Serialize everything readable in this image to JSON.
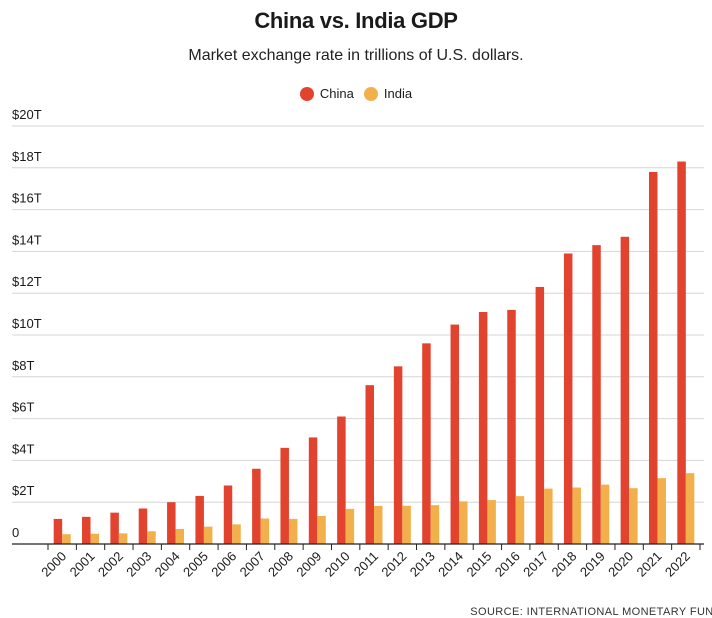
{
  "chart_data": {
    "type": "bar",
    "title": "China vs. India GDP",
    "subtitle": "Market exchange rate in trillions of U.S. dollars.",
    "categories": [
      "2000",
      "2001",
      "2002",
      "2003",
      "2004",
      "2005",
      "2006",
      "2007",
      "2008",
      "2009",
      "2010",
      "2011",
      "2012",
      "2013",
      "2014",
      "2015",
      "2016",
      "2017",
      "2018",
      "2019",
      "2020",
      "2021",
      "2022"
    ],
    "series": [
      {
        "name": "China",
        "color": "#e2432f",
        "values": [
          1.2,
          1.3,
          1.5,
          1.7,
          2.0,
          2.3,
          2.8,
          3.6,
          4.6,
          5.1,
          6.1,
          7.6,
          8.5,
          9.6,
          10.5,
          11.1,
          11.2,
          12.3,
          13.9,
          14.3,
          14.7,
          17.8,
          18.3
        ]
      },
      {
        "name": "India",
        "color": "#f2b04c",
        "values": [
          0.47,
          0.49,
          0.51,
          0.61,
          0.72,
          0.83,
          0.94,
          1.22,
          1.2,
          1.34,
          1.68,
          1.82,
          1.83,
          1.86,
          2.04,
          2.1,
          2.29,
          2.65,
          2.7,
          2.84,
          2.67,
          3.15,
          3.39
        ]
      }
    ],
    "y_ticks": [
      "0",
      "$2T",
      "$4T",
      "$6T",
      "$8T",
      "$10T",
      "$12T",
      "$14T",
      "$16T",
      "$18T",
      "$20T"
    ],
    "ylim": [
      0,
      20
    ],
    "grid": true,
    "legend": "top-center",
    "source": "SOURCE: INTERNATIONAL MONETARY FUND"
  }
}
